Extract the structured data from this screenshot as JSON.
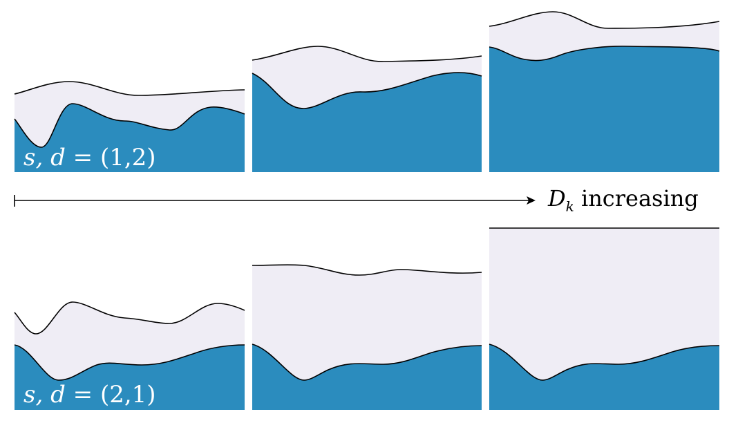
{
  "figure": {
    "colors": {
      "fluid": "#2b8cbe",
      "gap": "#efedf5",
      "outline": "#000000",
      "background": "#ffffff"
    },
    "axis": {
      "symbol": "D",
      "subscript": "k",
      "caption": "increasing"
    },
    "rows": [
      {
        "id": "top",
        "label_sym": "s, d",
        "label_eq": " = ",
        "label_val": "(1,2)"
      },
      {
        "id": "bottom",
        "label_sym": "s, d",
        "label_eq": " = ",
        "label_val": "(2,1)"
      }
    ]
  }
}
